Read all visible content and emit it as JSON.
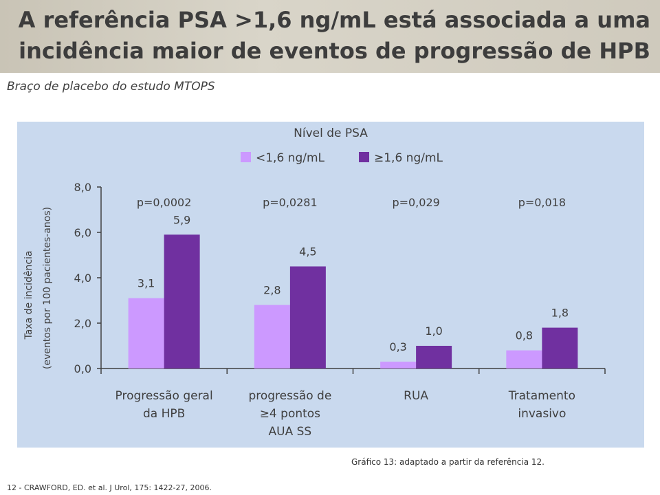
{
  "slide": {
    "title_line1": "A referência PSA >1,6 ng/mL está associada a uma",
    "title_line2": "incidência maior de eventos de progressão de HPB",
    "subtitle": "Braço de placebo do estudo MTOPS",
    "caption": "Gráfico 13: adaptado a partir da referência 12.",
    "reference": "12 - CRAWFORD, ED. et al. J Urol, 175: 1422-27, 2006.",
    "colors": {
      "title_bg": "#cfcabd",
      "chart_bg": "#c9d9ee"
    }
  },
  "chart_data": {
    "type": "bar",
    "legend_title": "Nível de PSA",
    "legend_position": "top",
    "categories": [
      [
        "Progressão geral",
        "da HPB"
      ],
      [
        "progressão de",
        "≥4 pontos",
        "AUA SS"
      ],
      [
        "RUA"
      ],
      [
        "Tratamento",
        "invasivo"
      ]
    ],
    "series": [
      {
        "name": "<1,6 ng/mL",
        "color": "#cc99ff",
        "values": [
          3.1,
          2.8,
          0.3,
          0.8
        ],
        "labels": [
          "3,1",
          "2,8",
          "0,3",
          "0,8"
        ]
      },
      {
        "name": "≥1,6 ng/mL",
        "color": "#7030a0",
        "values": [
          5.9,
          4.5,
          1.0,
          1.8
        ],
        "labels": [
          "5,9",
          "4,5",
          "1,0",
          "1,8"
        ]
      }
    ],
    "p_values": [
      "p=0,0002",
      "p=0,0281",
      "p=0,029",
      "p=0,018"
    ],
    "ylabel_line1": "Taxa de incidência",
    "ylabel_line2": "(eventos por 100 pacientes-anos)",
    "yticks": [
      0,
      2,
      4,
      6,
      8
    ],
    "ytick_labels": [
      "0,0",
      "2,0",
      "4,0",
      "6,0",
      "8,0"
    ],
    "ylim": [
      0,
      8
    ],
    "grid": false
  }
}
